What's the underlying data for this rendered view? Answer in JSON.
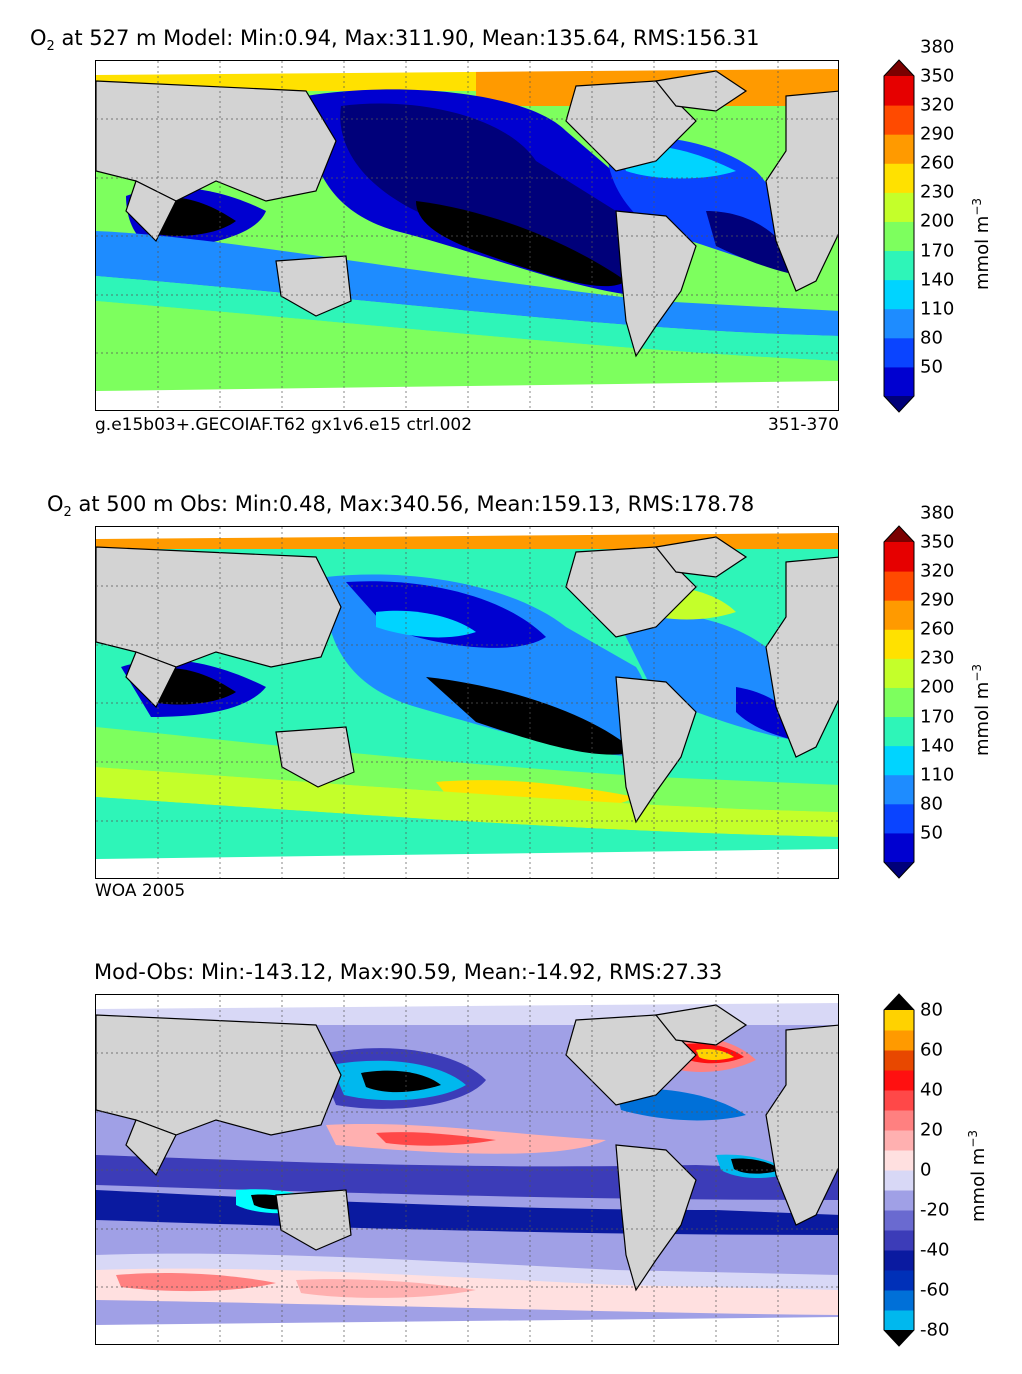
{
  "panels": [
    {
      "title_prefix": "O",
      "title_sub": "2",
      "title_rest": " at 527 m Model: Min:0.94, Max:311.90, Mean:135.64, RMS:156.31",
      "caption_left": "g.e15b03+.GECOIAF.T62 gx1v6.e15 ctrl.002",
      "caption_right": "351-370",
      "colorbar": {
        "colors": [
          "#00007a",
          "#0000d0",
          "#0a44ff",
          "#1e8cff",
          "#00d4ff",
          "#2ef5b8",
          "#7dff5e",
          "#c4ff2a",
          "#ffe100",
          "#ff9a00",
          "#ff4a00",
          "#e60000",
          "#7a0000"
        ],
        "ticks": [
          "50",
          "80",
          "110",
          "140",
          "170",
          "200",
          "230",
          "260",
          "290",
          "320",
          "350",
          "380"
        ],
        "unit": "mmol m",
        "unit_sup": "−3"
      }
    },
    {
      "title_prefix": "O",
      "title_sub": "2",
      "title_rest": " at 500 m Obs: Min:0.48, Max:340.56, Mean:159.13, RMS:178.78",
      "caption_left": "WOA 2005",
      "caption_right": "",
      "colorbar": {
        "colors": [
          "#00007a",
          "#0000d0",
          "#0a44ff",
          "#1e8cff",
          "#00d4ff",
          "#2ef5b8",
          "#7dff5e",
          "#c4ff2a",
          "#ffe100",
          "#ff9a00",
          "#ff4a00",
          "#e60000",
          "#7a0000"
        ],
        "ticks": [
          "50",
          "80",
          "110",
          "140",
          "170",
          "200",
          "230",
          "260",
          "290",
          "320",
          "350",
          "380"
        ],
        "unit": "mmol m",
        "unit_sup": "−3"
      }
    },
    {
      "title_prefix": "",
      "title_sub": "",
      "title_rest": "Mod-Obs: Min:-143.12, Max:90.59, Mean:-14.92, RMS:27.33",
      "caption_left": "",
      "caption_right": "",
      "colorbar": {
        "colors": [
          "#00ffff",
          "#00b8ee",
          "#0070d8",
          "#0030b8",
          "#0a1aa0",
          "#3c3cb8",
          "#6a6ad0",
          "#a0a0e6",
          "#d8d8f6",
          "#ffe0e0",
          "#ffb0b0",
          "#ff8080",
          "#ff4848",
          "#ff1010",
          "#e84800",
          "#ff9a00",
          "#ffd200",
          "#ffff30"
        ],
        "ticks": [
          "-80",
          "-60",
          "-40",
          "-20",
          "0",
          "20",
          "40",
          "60",
          "80"
        ],
        "unit": "mmol m",
        "unit_sup": "−3"
      }
    }
  ],
  "colors": {
    "land": "#d3d3d3",
    "ice": "#ffffff",
    "coast": "#000000"
  }
}
